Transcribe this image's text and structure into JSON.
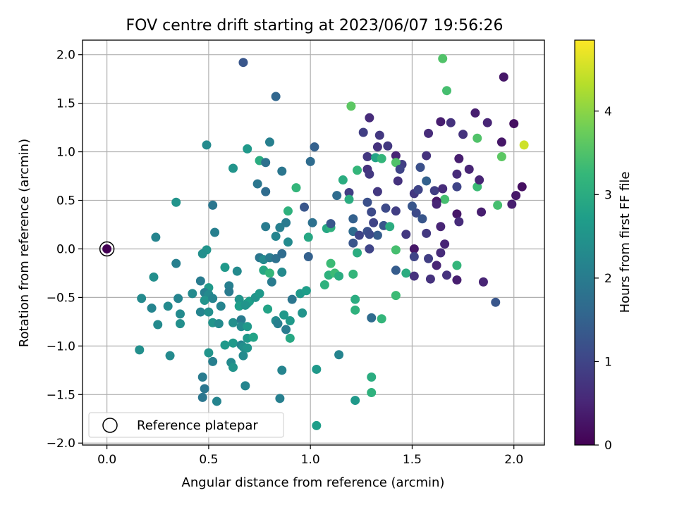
{
  "chart_data": {
    "type": "scatter",
    "title": "FOV centre drift starting at 2023/06/07 19:56:26",
    "xlabel": "Angular distance from reference (arcmin)",
    "ylabel": "Rotation from reference (arcmin)",
    "xlim": [
      -0.12,
      2.15
    ],
    "ylim": [
      -2.02,
      2.15
    ],
    "xticks": [
      "0.0",
      "0.5",
      "1.0",
      "1.5",
      "2.0"
    ],
    "yticks": [
      "2.0",
      "1.5",
      "1.0",
      "0.5",
      "0.0",
      "-0.5",
      "-1.0",
      "-1.5",
      "-2.0"
    ],
    "grid": true,
    "colormap": "viridis",
    "colorbar": {
      "label": "Hours from first FF file",
      "range": [
        0,
        4.85
      ],
      "ticks": [
        "0",
        "1",
        "2",
        "3",
        "4"
      ]
    },
    "legend": {
      "label": "Reference platepar",
      "placement": "lower-left"
    },
    "reference_point": {
      "x": 0.0,
      "y": 0.0
    },
    "points": [
      {
        "x": 0.0,
        "y": 0.0,
        "c": 0.0
      },
      {
        "x": 1.65,
        "y": 1.96,
        "c": 3.5
      },
      {
        "x": 0.67,
        "y": 1.92,
        "c": 1.3
      },
      {
        "x": 1.67,
        "y": 1.63,
        "c": 3.4
      },
      {
        "x": 0.83,
        "y": 1.57,
        "c": 1.6
      },
      {
        "x": 1.2,
        "y": 1.47,
        "c": 3.6
      },
      {
        "x": 1.95,
        "y": 1.77,
        "c": 0.3
      },
      {
        "x": 1.29,
        "y": 1.35,
        "c": 0.6
      },
      {
        "x": 1.64,
        "y": 1.31,
        "c": 0.4
      },
      {
        "x": 1.69,
        "y": 1.3,
        "c": 0.7
      },
      {
        "x": 1.81,
        "y": 1.4,
        "c": 0.4
      },
      {
        "x": 1.87,
        "y": 1.3,
        "c": 0.5
      },
      {
        "x": 2.0,
        "y": 1.29,
        "c": 0.2
      },
      {
        "x": 1.26,
        "y": 1.2,
        "c": 0.9
      },
      {
        "x": 1.34,
        "y": 1.17,
        "c": 0.8
      },
      {
        "x": 1.58,
        "y": 1.19,
        "c": 0.6
      },
      {
        "x": 1.75,
        "y": 1.18,
        "c": 0.7
      },
      {
        "x": 1.82,
        "y": 1.14,
        "c": 3.5
      },
      {
        "x": 1.94,
        "y": 1.1,
        "c": 0.3
      },
      {
        "x": 2.05,
        "y": 1.07,
        "c": 4.5
      },
      {
        "x": 0.49,
        "y": 1.07,
        "c": 2.3
      },
      {
        "x": 0.8,
        "y": 1.1,
        "c": 2.1
      },
      {
        "x": 1.02,
        "y": 1.05,
        "c": 1.5
      },
      {
        "x": 0.69,
        "y": 1.03,
        "c": 2.6
      },
      {
        "x": 1.33,
        "y": 1.05,
        "c": 0.7
      },
      {
        "x": 1.38,
        "y": 1.06,
        "c": 0.8
      },
      {
        "x": 1.28,
        "y": 0.95,
        "c": 0.8
      },
      {
        "x": 1.32,
        "y": 0.94,
        "c": 2.8
      },
      {
        "x": 1.42,
        "y": 0.96,
        "c": 0.5
      },
      {
        "x": 1.57,
        "y": 0.96,
        "c": 0.7
      },
      {
        "x": 1.73,
        "y": 0.93,
        "c": 0.4
      },
      {
        "x": 1.94,
        "y": 0.95,
        "c": 3.6
      },
      {
        "x": 0.75,
        "y": 0.91,
        "c": 3.0
      },
      {
        "x": 0.78,
        "y": 0.89,
        "c": 1.8
      },
      {
        "x": 1.0,
        "y": 0.9,
        "c": 1.7
      },
      {
        "x": 1.35,
        "y": 0.93,
        "c": 3.2
      },
      {
        "x": 1.45,
        "y": 0.87,
        "c": 0.9
      },
      {
        "x": 1.42,
        "y": 0.89,
        "c": 3.5
      },
      {
        "x": 1.23,
        "y": 0.81,
        "c": 3.2
      },
      {
        "x": 1.28,
        "y": 0.82,
        "c": 0.7
      },
      {
        "x": 1.44,
        "y": 0.82,
        "c": 1.0
      },
      {
        "x": 1.54,
        "y": 0.84,
        "c": 1.2
      },
      {
        "x": 1.72,
        "y": 0.77,
        "c": 0.6
      },
      {
        "x": 1.78,
        "y": 0.82,
        "c": 0.5
      },
      {
        "x": 0.62,
        "y": 0.83,
        "c": 2.5
      },
      {
        "x": 0.86,
        "y": 0.8,
        "c": 1.9
      },
      {
        "x": 1.16,
        "y": 0.71,
        "c": 3.0
      },
      {
        "x": 1.29,
        "y": 0.77,
        "c": 0.8
      },
      {
        "x": 1.43,
        "y": 0.7,
        "c": 0.7
      },
      {
        "x": 1.57,
        "y": 0.7,
        "c": 1.5
      },
      {
        "x": 1.61,
        "y": 0.6,
        "c": 0.9
      },
      {
        "x": 1.65,
        "y": 0.62,
        "c": 0.6
      },
      {
        "x": 1.72,
        "y": 0.64,
        "c": 1.0
      },
      {
        "x": 1.82,
        "y": 0.64,
        "c": 3.3
      },
      {
        "x": 1.83,
        "y": 0.71,
        "c": 0.5
      },
      {
        "x": 2.04,
        "y": 0.64,
        "c": 0.2
      },
      {
        "x": 0.74,
        "y": 0.67,
        "c": 1.9
      },
      {
        "x": 0.78,
        "y": 0.59,
        "c": 1.7
      },
      {
        "x": 0.93,
        "y": 0.63,
        "c": 3.2
      },
      {
        "x": 1.13,
        "y": 0.55,
        "c": 1.7
      },
      {
        "x": 1.19,
        "y": 0.58,
        "c": 0.9
      },
      {
        "x": 1.33,
        "y": 0.59,
        "c": 0.8
      },
      {
        "x": 1.51,
        "y": 0.57,
        "c": 0.8
      },
      {
        "x": 1.53,
        "y": 0.61,
        "c": 1.0
      },
      {
        "x": 1.66,
        "y": 0.51,
        "c": 3.4
      },
      {
        "x": 1.62,
        "y": 0.49,
        "c": 0.3
      },
      {
        "x": 1.99,
        "y": 0.46,
        "c": 0.4
      },
      {
        "x": 2.01,
        "y": 0.55,
        "c": 0.3
      },
      {
        "x": 0.34,
        "y": 0.48,
        "c": 2.5
      },
      {
        "x": 0.52,
        "y": 0.45,
        "c": 1.9
      },
      {
        "x": 1.19,
        "y": 0.51,
        "c": 3.0
      },
      {
        "x": 1.28,
        "y": 0.48,
        "c": 1.2
      },
      {
        "x": 1.37,
        "y": 0.42,
        "c": 1.1
      },
      {
        "x": 1.42,
        "y": 0.39,
        "c": 0.9
      },
      {
        "x": 1.52,
        "y": 0.37,
        "c": 1.1
      },
      {
        "x": 1.62,
        "y": 0.46,
        "c": 0.5
      },
      {
        "x": 1.72,
        "y": 0.36,
        "c": 0.3
      },
      {
        "x": 1.73,
        "y": 0.28,
        "c": 0.6
      },
      {
        "x": 1.84,
        "y": 0.38,
        "c": 0.4
      },
      {
        "x": 1.92,
        "y": 0.45,
        "c": 3.4
      },
      {
        "x": 0.89,
        "y": 0.39,
        "c": 3.1
      },
      {
        "x": 0.97,
        "y": 0.43,
        "c": 1.3
      },
      {
        "x": 1.21,
        "y": 0.31,
        "c": 1.5
      },
      {
        "x": 1.3,
        "y": 0.38,
        "c": 1.1
      },
      {
        "x": 1.5,
        "y": 0.44,
        "c": 1.3
      },
      {
        "x": 1.55,
        "y": 0.31,
        "c": 1.3
      },
      {
        "x": 1.31,
        "y": 0.27,
        "c": 1.0
      },
      {
        "x": 0.53,
        "y": 0.17,
        "c": 2.1
      },
      {
        "x": 0.78,
        "y": 0.23,
        "c": 2.0
      },
      {
        "x": 0.85,
        "y": 0.22,
        "c": 2.1
      },
      {
        "x": 0.88,
        "y": 0.27,
        "c": 2.0
      },
      {
        "x": 1.01,
        "y": 0.27,
        "c": 1.8
      },
      {
        "x": 1.08,
        "y": 0.21,
        "c": 2.9
      },
      {
        "x": 1.1,
        "y": 0.22,
        "c": 3.1
      },
      {
        "x": 1.1,
        "y": 0.26,
        "c": 1.3
      },
      {
        "x": 1.21,
        "y": 0.18,
        "c": 1.7
      },
      {
        "x": 1.28,
        "y": 0.18,
        "c": 1.2
      },
      {
        "x": 1.33,
        "y": 0.14,
        "c": 1.4
      },
      {
        "x": 1.36,
        "y": 0.24,
        "c": 1.3
      },
      {
        "x": 1.39,
        "y": 0.23,
        "c": 3.0
      },
      {
        "x": 1.47,
        "y": 0.15,
        "c": 0.8
      },
      {
        "x": 1.57,
        "y": 0.16,
        "c": 0.8
      },
      {
        "x": 1.64,
        "y": 0.23,
        "c": 0.5
      },
      {
        "x": 0.24,
        "y": 0.12,
        "c": 2.2
      },
      {
        "x": 0.83,
        "y": 0.13,
        "c": 2.2
      },
      {
        "x": 0.89,
        "y": 0.07,
        "c": 2.3
      },
      {
        "x": 0.99,
        "y": 0.12,
        "c": 2.9
      },
      {
        "x": 1.21,
        "y": 0.06,
        "c": 1.3
      },
      {
        "x": 1.24,
        "y": 0.14,
        "c": 1.0
      },
      {
        "x": 1.29,
        "y": 0.15,
        "c": 1.1
      },
      {
        "x": 0.49,
        "y": -0.01,
        "c": 2.5
      },
      {
        "x": 0.47,
        "y": -0.05,
        "c": 2.4
      },
      {
        "x": 1.23,
        "y": -0.04,
        "c": 3.0
      },
      {
        "x": 1.29,
        "y": 0.0,
        "c": 1.0
      },
      {
        "x": 1.42,
        "y": -0.01,
        "c": 3.4
      },
      {
        "x": 1.51,
        "y": 0.0,
        "c": 0.3
      },
      {
        "x": 1.66,
        "y": 0.05,
        "c": 0.5
      },
      {
        "x": 1.64,
        "y": -0.04,
        "c": 0.6
      },
      {
        "x": 0.23,
        "y": -0.29,
        "c": 2.4
      },
      {
        "x": 0.34,
        "y": -0.15,
        "c": 2.1
      },
      {
        "x": 0.75,
        "y": -0.09,
        "c": 1.9
      },
      {
        "x": 0.77,
        "y": -0.11,
        "c": 2.3
      },
      {
        "x": 0.8,
        "y": -0.09,
        "c": 2.0
      },
      {
        "x": 0.83,
        "y": -0.1,
        "c": 1.8
      },
      {
        "x": 0.86,
        "y": -0.05,
        "c": 1.7
      },
      {
        "x": 0.99,
        "y": -0.08,
        "c": 1.5
      },
      {
        "x": 1.1,
        "y": -0.15,
        "c": 3.3
      },
      {
        "x": 1.21,
        "y": -0.26,
        "c": 3.2
      },
      {
        "x": 1.42,
        "y": -0.22,
        "c": 1.4
      },
      {
        "x": 1.47,
        "y": -0.25,
        "c": 3.0
      },
      {
        "x": 1.51,
        "y": -0.28,
        "c": 0.7
      },
      {
        "x": 1.51,
        "y": -0.08,
        "c": 1.0
      },
      {
        "x": 1.58,
        "y": -0.1,
        "c": 0.9
      },
      {
        "x": 1.59,
        "y": -0.31,
        "c": 0.7
      },
      {
        "x": 1.62,
        "y": -0.17,
        "c": 0.5
      },
      {
        "x": 1.67,
        "y": -0.27,
        "c": 0.7
      },
      {
        "x": 1.72,
        "y": -0.32,
        "c": 0.4
      },
      {
        "x": 1.72,
        "y": -0.17,
        "c": 3.2
      },
      {
        "x": 1.85,
        "y": -0.34,
        "c": 0.5
      },
      {
        "x": 0.58,
        "y": -0.19,
        "c": 2.6
      },
      {
        "x": 0.64,
        "y": -0.23,
        "c": 2.3
      },
      {
        "x": 0.77,
        "y": -0.22,
        "c": 2.9
      },
      {
        "x": 0.8,
        "y": -0.25,
        "c": 3.2
      },
      {
        "x": 0.86,
        "y": -0.24,
        "c": 2.3
      },
      {
        "x": 0.81,
        "y": -0.34,
        "c": 2.0
      },
      {
        "x": 0.46,
        "y": -0.33,
        "c": 2.0
      },
      {
        "x": 0.5,
        "y": -0.4,
        "c": 2.6
      },
      {
        "x": 0.6,
        "y": -0.38,
        "c": 2.1
      },
      {
        "x": 0.6,
        "y": -0.44,
        "c": 2.0
      },
      {
        "x": 1.09,
        "y": -0.27,
        "c": 3.1
      },
      {
        "x": 1.12,
        "y": -0.25,
        "c": 3.3
      },
      {
        "x": 1.14,
        "y": -0.28,
        "c": 3.0
      },
      {
        "x": 1.07,
        "y": -0.37,
        "c": 3.1
      },
      {
        "x": 0.91,
        "y": -0.52,
        "c": 1.9
      },
      {
        "x": 0.95,
        "y": -0.46,
        "c": 2.6
      },
      {
        "x": 0.98,
        "y": -0.43,
        "c": 2.7
      },
      {
        "x": 1.22,
        "y": -0.52,
        "c": 3.0
      },
      {
        "x": 1.42,
        "y": -0.48,
        "c": 3.3
      },
      {
        "x": 0.17,
        "y": -0.51,
        "c": 2.3
      },
      {
        "x": 0.22,
        "y": -0.61,
        "c": 2.2
      },
      {
        "x": 0.3,
        "y": -0.59,
        "c": 2.3
      },
      {
        "x": 0.35,
        "y": -0.51,
        "c": 2.2
      },
      {
        "x": 0.42,
        "y": -0.46,
        "c": 2.3
      },
      {
        "x": 0.48,
        "y": -0.45,
        "c": 2.1
      },
      {
        "x": 0.5,
        "y": -0.47,
        "c": 2.3
      },
      {
        "x": 0.48,
        "y": -0.53,
        "c": 2.5
      },
      {
        "x": 0.52,
        "y": -0.51,
        "c": 2.2
      },
      {
        "x": 0.46,
        "y": -0.65,
        "c": 2.2
      },
      {
        "x": 0.5,
        "y": -0.65,
        "c": 2.4
      },
      {
        "x": 0.56,
        "y": -0.59,
        "c": 2.2
      },
      {
        "x": 0.65,
        "y": -0.52,
        "c": 2.5
      },
      {
        "x": 0.69,
        "y": -0.56,
        "c": 2.8
      },
      {
        "x": 0.7,
        "y": -0.54,
        "c": 2.7
      },
      {
        "x": 0.73,
        "y": -0.5,
        "c": 2.5
      },
      {
        "x": 0.75,
        "y": -0.46,
        "c": 2.6
      },
      {
        "x": 0.65,
        "y": -0.59,
        "c": 2.7
      },
      {
        "x": 0.68,
        "y": -0.58,
        "c": 2.5
      },
      {
        "x": 0.79,
        "y": -0.62,
        "c": 2.8
      },
      {
        "x": 0.36,
        "y": -0.67,
        "c": 2.3
      },
      {
        "x": 0.25,
        "y": -0.78,
        "c": 2.3
      },
      {
        "x": 0.36,
        "y": -0.77,
        "c": 2.4
      },
      {
        "x": 0.52,
        "y": -0.76,
        "c": 2.5
      },
      {
        "x": 0.55,
        "y": -0.77,
        "c": 2.3
      },
      {
        "x": 0.62,
        "y": -0.76,
        "c": 2.4
      },
      {
        "x": 0.66,
        "y": -0.73,
        "c": 2.0
      },
      {
        "x": 0.66,
        "y": -0.8,
        "c": 2.3
      },
      {
        "x": 0.69,
        "y": -0.8,
        "c": 2.6
      },
      {
        "x": 0.69,
        "y": -0.92,
        "c": 2.6
      },
      {
        "x": 0.72,
        "y": -0.91,
        "c": 2.8
      },
      {
        "x": 0.83,
        "y": -0.74,
        "c": 2.3
      },
      {
        "x": 0.84,
        "y": -0.77,
        "c": 2.1
      },
      {
        "x": 0.87,
        "y": -0.68,
        "c": 2.6
      },
      {
        "x": 0.88,
        "y": -0.83,
        "c": 2.0
      },
      {
        "x": 0.9,
        "y": -0.74,
        "c": 2.6
      },
      {
        "x": 0.9,
        "y": -0.92,
        "c": 2.9
      },
      {
        "x": 0.96,
        "y": -0.66,
        "c": 2.5
      },
      {
        "x": 0.16,
        "y": -1.04,
        "c": 2.4
      },
      {
        "x": 0.31,
        "y": -1.1,
        "c": 2.3
      },
      {
        "x": 0.5,
        "y": -1.07,
        "c": 2.5
      },
      {
        "x": 0.52,
        "y": -1.16,
        "c": 2.1
      },
      {
        "x": 0.58,
        "y": -0.99,
        "c": 2.6
      },
      {
        "x": 0.62,
        "y": -0.97,
        "c": 2.6
      },
      {
        "x": 0.61,
        "y": -1.17,
        "c": 2.3
      },
      {
        "x": 0.62,
        "y": -1.22,
        "c": 2.5
      },
      {
        "x": 0.66,
        "y": -0.99,
        "c": 2.2
      },
      {
        "x": 0.67,
        "y": -1.01,
        "c": 2.4
      },
      {
        "x": 0.67,
        "y": -1.1,
        "c": 2.3
      },
      {
        "x": 0.69,
        "y": -1.02,
        "c": 2.5
      },
      {
        "x": 0.86,
        "y": -1.25,
        "c": 2.2
      },
      {
        "x": 1.03,
        "y": -1.24,
        "c": 2.6
      },
      {
        "x": 1.14,
        "y": -1.09,
        "c": 2.2
      },
      {
        "x": 1.3,
        "y": -0.71,
        "c": 1.7
      },
      {
        "x": 1.35,
        "y": -0.72,
        "c": 3.2
      },
      {
        "x": 1.22,
        "y": -0.63,
        "c": 3.1
      },
      {
        "x": 1.3,
        "y": -1.32,
        "c": 3.0
      },
      {
        "x": 1.3,
        "y": -1.48,
        "c": 3.1
      },
      {
        "x": 0.47,
        "y": -1.32,
        "c": 2.0
      },
      {
        "x": 0.48,
        "y": -1.44,
        "c": 1.9
      },
      {
        "x": 0.47,
        "y": -1.53,
        "c": 1.9
      },
      {
        "x": 0.54,
        "y": -1.57,
        "c": 2.2
      },
      {
        "x": 0.68,
        "y": -1.41,
        "c": 2.2
      },
      {
        "x": 0.85,
        "y": -1.54,
        "c": 2.1
      },
      {
        "x": 1.22,
        "y": -1.56,
        "c": 2.6
      },
      {
        "x": 1.03,
        "y": -1.82,
        "c": 2.7
      },
      {
        "x": 1.91,
        "y": -0.55,
        "c": 1.3
      }
    ]
  }
}
